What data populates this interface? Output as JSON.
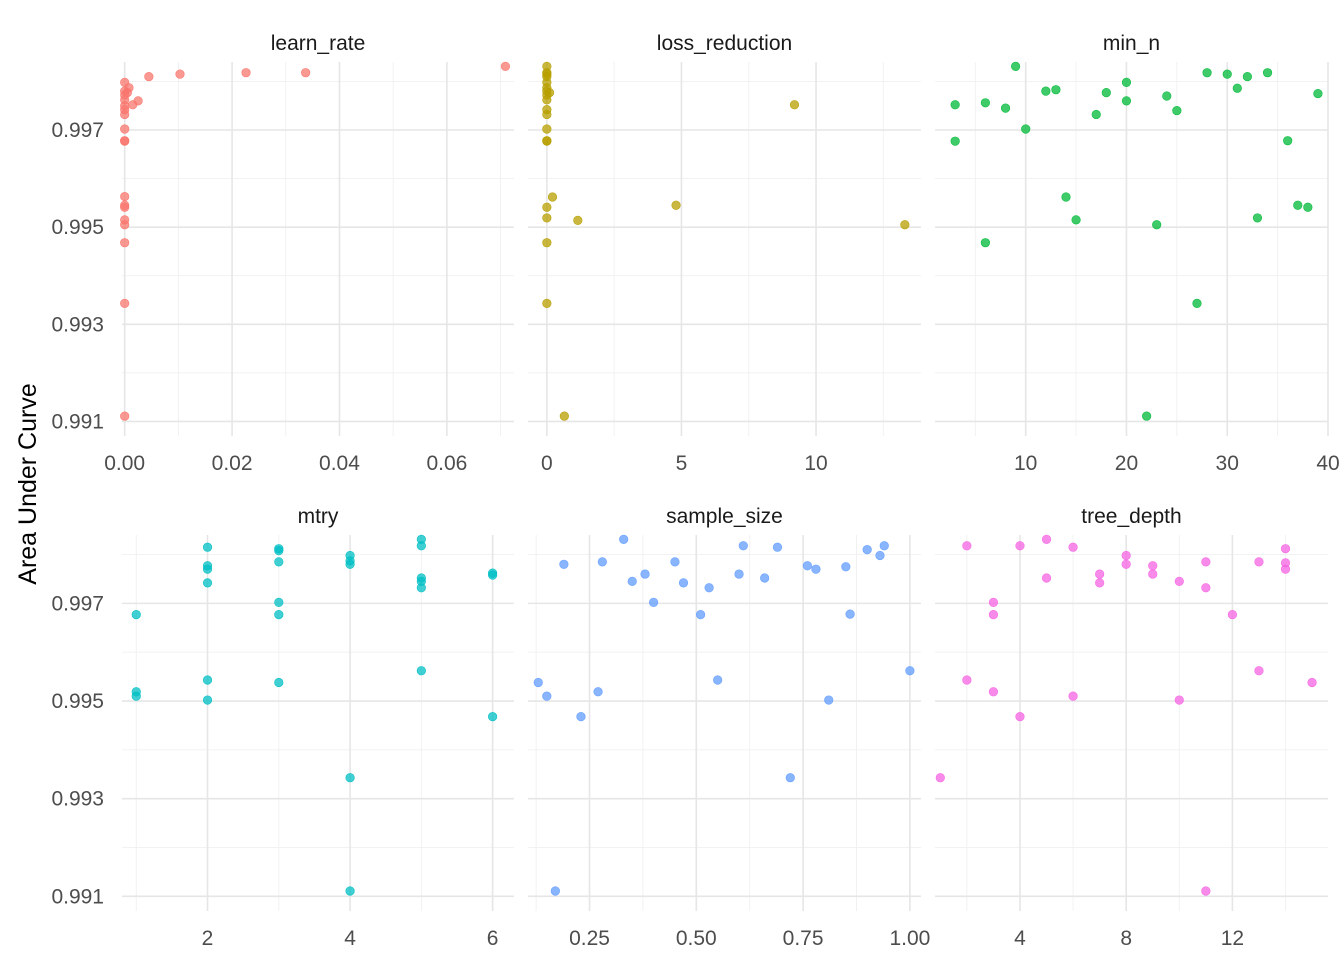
{
  "chart_data": {
    "type": "scatter",
    "ylabel": "Area Under Curve",
    "xlabel": "",
    "ylim": [
      0.9907,
      0.9984
    ],
    "y_ticks": [
      0.991,
      0.993,
      0.995,
      0.997
    ],
    "grid": true,
    "facets": [
      {
        "name": "learn_rate",
        "color": "#F8766D",
        "xlim": [
          -0.0005,
          0.0725
        ],
        "x_ticks": [
          0.0,
          0.02,
          0.04,
          0.06
        ],
        "x_tick_labels": [
          "0.00",
          "0.02",
          "0.04",
          "0.06"
        ],
        "points": [
          [
            0.0,
            0.99111
          ],
          [
            0.0,
            0.99343
          ],
          [
            0.0,
            0.99468
          ],
          [
            0.0,
            0.99505
          ],
          [
            0.0,
            0.99515
          ],
          [
            0.0,
            0.99541
          ],
          [
            0.0,
            0.99545
          ],
          [
            0.0,
            0.99563
          ],
          [
            0.0,
            0.99677
          ],
          [
            0.0,
            0.99678
          ],
          [
            0.0,
            0.99702
          ],
          [
            0.0,
            0.99732
          ],
          [
            0.0,
            0.99742
          ],
          [
            0.0,
            0.9975
          ],
          [
            0.0,
            0.99762
          ],
          [
            0.0,
            0.99772
          ],
          [
            0.0,
            0.9978
          ],
          [
            0.0,
            0.99798
          ],
          [
            0.0005,
            0.99777
          ],
          [
            0.0008,
            0.99787
          ],
          [
            0.0015,
            0.99752
          ],
          [
            0.0025,
            0.9976
          ],
          [
            0.0045,
            0.9981
          ],
          [
            0.0103,
            0.99815
          ],
          [
            0.0226,
            0.99818
          ],
          [
            0.0337,
            0.99818
          ],
          [
            0.0709,
            0.99831
          ]
        ]
      },
      {
        "name": "loss_reduction",
        "color": "#B79F00",
        "xlim": [
          -0.7,
          13.9
        ],
        "x_ticks": [
          0,
          5,
          10
        ],
        "x_tick_labels": [
          "0",
          "5",
          "10"
        ],
        "points": [
          [
            0.0,
            0.99831
          ],
          [
            0.0,
            0.99818
          ],
          [
            0.0,
            0.99815
          ],
          [
            0.0,
            0.9981
          ],
          [
            0.0,
            0.99798
          ],
          [
            0.0,
            0.99787
          ],
          [
            0.0,
            0.9978
          ],
          [
            0.1,
            0.99777
          ],
          [
            0.0,
            0.99772
          ],
          [
            0.0,
            0.99762
          ],
          [
            0.0,
            0.99742
          ],
          [
            0.0,
            0.99732
          ],
          [
            0.0,
            0.99702
          ],
          [
            0.0,
            0.99678
          ],
          [
            0.0,
            0.99677
          ],
          [
            0.0,
            0.99541
          ],
          [
            0.0,
            0.99519
          ],
          [
            0.0,
            0.99468
          ],
          [
            0.0,
            0.99343
          ],
          [
            0.21,
            0.99562
          ],
          [
            0.65,
            0.99111
          ],
          [
            1.15,
            0.99514
          ],
          [
            4.8,
            0.99545
          ],
          [
            9.2,
            0.99752
          ],
          [
            13.3,
            0.99505
          ]
        ]
      },
      {
        "name": "min_n",
        "color": "#00BA38",
        "xlim": [
          1.0,
          40.0
        ],
        "x_ticks": [
          10,
          20,
          30,
          40
        ],
        "x_tick_labels": [
          "10",
          "20",
          "30",
          "40"
        ],
        "points": [
          [
            3,
            0.99752
          ],
          [
            3,
            0.99677
          ],
          [
            6,
            0.99756
          ],
          [
            6,
            0.99468
          ],
          [
            8,
            0.99745
          ],
          [
            9,
            0.99831
          ],
          [
            10,
            0.99702
          ],
          [
            12,
            0.9978
          ],
          [
            13,
            0.99783
          ],
          [
            14,
            0.99562
          ],
          [
            15,
            0.99515
          ],
          [
            17,
            0.99732
          ],
          [
            18,
            0.99777
          ],
          [
            20,
            0.99798
          ],
          [
            20,
            0.9976
          ],
          [
            22,
            0.99111
          ],
          [
            23,
            0.99505
          ],
          [
            24,
            0.9977
          ],
          [
            25,
            0.9974
          ],
          [
            27,
            0.99343
          ],
          [
            28,
            0.99818
          ],
          [
            30,
            0.99815
          ],
          [
            31,
            0.99786
          ],
          [
            32,
            0.9981
          ],
          [
            33,
            0.99519
          ],
          [
            34,
            0.99818
          ],
          [
            36,
            0.99678
          ],
          [
            37,
            0.99545
          ],
          [
            38,
            0.99541
          ],
          [
            39,
            0.99775
          ]
        ]
      },
      {
        "name": "mtry",
        "color": "#00BFC4",
        "xlim": [
          0.8,
          6.3
        ],
        "x_ticks": [
          2,
          4,
          6
        ],
        "x_tick_labels": [
          "2",
          "4",
          "6"
        ],
        "points": [
          [
            1,
            0.99677
          ],
          [
            1,
            0.99519
          ],
          [
            1,
            0.9951
          ],
          [
            2,
            0.99815
          ],
          [
            2,
            0.99777
          ],
          [
            2,
            0.9977
          ],
          [
            2,
            0.99742
          ],
          [
            2,
            0.99543
          ],
          [
            2,
            0.99502
          ],
          [
            3,
            0.99812
          ],
          [
            3,
            0.99808
          ],
          [
            3,
            0.99785
          ],
          [
            3,
            0.99702
          ],
          [
            3,
            0.99677
          ],
          [
            3,
            0.99538
          ],
          [
            4,
            0.99798
          ],
          [
            4,
            0.99787
          ],
          [
            4,
            0.9978
          ],
          [
            4,
            0.99343
          ],
          [
            4,
            0.99111
          ],
          [
            5,
            0.99831
          ],
          [
            5,
            0.99818
          ],
          [
            5,
            0.99752
          ],
          [
            5,
            0.99745
          ],
          [
            5,
            0.99732
          ],
          [
            5,
            0.99562
          ],
          [
            6,
            0.99762
          ],
          [
            6,
            0.99758
          ],
          [
            6,
            0.99468
          ]
        ]
      },
      {
        "name": "sample_size",
        "color": "#619CFF",
        "xlim": [
          0.106,
          1.026
        ],
        "x_ticks": [
          0.25,
          0.5,
          0.75,
          1.0
        ],
        "x_tick_labels": [
          "0.25",
          "0.50",
          "0.75",
          "1.00"
        ],
        "points": [
          [
            0.13,
            0.99538
          ],
          [
            0.15,
            0.9951
          ],
          [
            0.17,
            0.99111
          ],
          [
            0.19,
            0.9978
          ],
          [
            0.23,
            0.99468
          ],
          [
            0.27,
            0.99519
          ],
          [
            0.28,
            0.99785
          ],
          [
            0.33,
            0.99831
          ],
          [
            0.35,
            0.99745
          ],
          [
            0.38,
            0.9976
          ],
          [
            0.4,
            0.99702
          ],
          [
            0.45,
            0.99785
          ],
          [
            0.47,
            0.99742
          ],
          [
            0.51,
            0.99677
          ],
          [
            0.53,
            0.99732
          ],
          [
            0.55,
            0.99543
          ],
          [
            0.6,
            0.9976
          ],
          [
            0.61,
            0.99818
          ],
          [
            0.66,
            0.99752
          ],
          [
            0.69,
            0.99815
          ],
          [
            0.72,
            0.99343
          ],
          [
            0.76,
            0.99777
          ],
          [
            0.78,
            0.9977
          ],
          [
            0.81,
            0.99502
          ],
          [
            0.85,
            0.99775
          ],
          [
            0.86,
            0.99678
          ],
          [
            0.9,
            0.9981
          ],
          [
            0.93,
            0.99798
          ],
          [
            0.94,
            0.99818
          ],
          [
            1.0,
            0.99562
          ]
        ]
      },
      {
        "name": "tree_depth",
        "color": "#F564E3",
        "xlim": [
          0.8,
          15.6
        ],
        "x_ticks": [
          4,
          8,
          12
        ],
        "x_tick_labels": [
          "4",
          "8",
          "12"
        ],
        "points": [
          [
            1,
            0.99343
          ],
          [
            2,
            0.99818
          ],
          [
            2,
            0.99543
          ],
          [
            3,
            0.99702
          ],
          [
            3,
            0.99677
          ],
          [
            3,
            0.99519
          ],
          [
            4,
            0.99818
          ],
          [
            4,
            0.99468
          ],
          [
            5,
            0.99831
          ],
          [
            5,
            0.99752
          ],
          [
            6,
            0.99815
          ],
          [
            6,
            0.9951
          ],
          [
            7,
            0.9976
          ],
          [
            7,
            0.99742
          ],
          [
            8,
            0.99798
          ],
          [
            8,
            0.9978
          ],
          [
            9,
            0.99777
          ],
          [
            9,
            0.9976
          ],
          [
            10,
            0.99745
          ],
          [
            10,
            0.99502
          ],
          [
            11,
            0.99785
          ],
          [
            11,
            0.99732
          ],
          [
            11,
            0.99111
          ],
          [
            12,
            0.99677
          ],
          [
            13,
            0.99785
          ],
          [
            13,
            0.99562
          ],
          [
            14,
            0.99812
          ],
          [
            14,
            0.99783
          ],
          [
            14,
            0.9977
          ],
          [
            15,
            0.99538
          ]
        ]
      }
    ]
  }
}
